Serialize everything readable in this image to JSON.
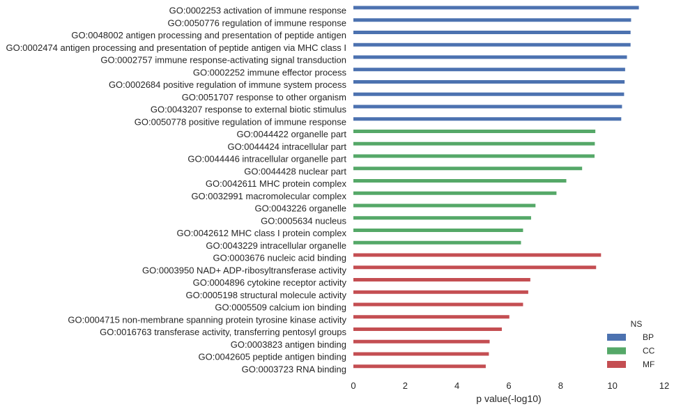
{
  "chart_data": {
    "type": "bar",
    "orientation": "horizontal",
    "xlabel": "p value(-log10)",
    "xlim": [
      0,
      12
    ],
    "xticks": [
      "0",
      "2",
      "4",
      "6",
      "8",
      "10",
      "12"
    ],
    "grid": false,
    "legend": {
      "title": "NS",
      "placement": "bottom-right",
      "entries": [
        {
          "name": "BP",
          "color": "#4C72B0"
        },
        {
          "name": "CC",
          "color": "#55A868"
        },
        {
          "name": "MF",
          "color": "#C44E52"
        }
      ]
    },
    "categories": [
      "GO:0002253 activation of immune response",
      "GO:0050776 regulation of immune response",
      "GO:0048002 antigen processing and presentation of peptide antigen",
      "GO:0002474 antigen processing and presentation of peptide antigen via MHC class I",
      "GO:0002757 immune response-activating signal transduction",
      "GO:0002252 immune effector process",
      "GO:0002684 positive regulation of immune system process",
      "GO:0051707 response to other organism",
      "GO:0043207 response to external biotic stimulus",
      "GO:0050778 positive regulation of immune response",
      "GO:0044422 organelle part",
      "GO:0044424 intracellular part",
      "GO:0044446 intracellular organelle part",
      "GO:0044428 nuclear part",
      "GO:0042611 MHC protein complex",
      "GO:0032991 macromolecular complex",
      "GO:0043226 organelle",
      "GO:0005634 nucleus",
      "GO:0042612 MHC class I protein complex",
      "GO:0043229 intracellular organelle",
      "GO:0003676 nucleic acid binding",
      "GO:0003950 NAD+ ADP-ribosyltransferase activity",
      "GO:0004896 cytokine receptor activity",
      "GO:0005198 structural molecule activity",
      "GO:0005509 calcium ion binding",
      "GO:0004715 non-membrane spanning protein tyrosine kinase activity",
      "GO:0016763 transferase activity, transferring pentosyl groups",
      "GO:0003823 antigen binding",
      "GO:0042605 peptide antigen binding",
      "GO:0003723 RNA binding"
    ],
    "ns": [
      "BP",
      "BP",
      "BP",
      "BP",
      "BP",
      "BP",
      "BP",
      "BP",
      "BP",
      "BP",
      "CC",
      "CC",
      "CC",
      "CC",
      "CC",
      "CC",
      "CC",
      "CC",
      "CC",
      "CC",
      "MF",
      "MF",
      "MF",
      "MF",
      "MF",
      "MF",
      "MF",
      "MF",
      "MF",
      "MF"
    ],
    "values": [
      11.02,
      10.72,
      10.7,
      10.7,
      10.56,
      10.49,
      10.47,
      10.45,
      10.37,
      10.34,
      9.34,
      9.32,
      9.31,
      8.83,
      8.22,
      7.84,
      7.03,
      6.86,
      6.55,
      6.47,
      9.56,
      9.37,
      6.83,
      6.75,
      6.55,
      6.02,
      5.73,
      5.26,
      5.23,
      5.11
    ]
  }
}
